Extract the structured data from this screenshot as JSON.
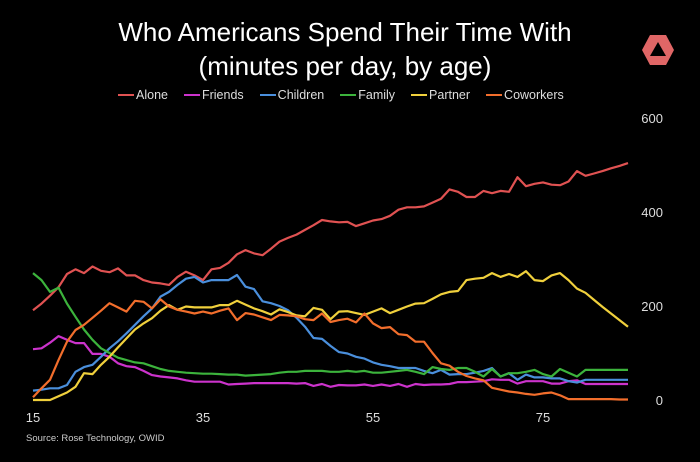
{
  "chart_data": {
    "type": "line",
    "title": "Who Americans Spend Their Time With",
    "subtitle": "(minutes per day, by age)",
    "xlabel": "",
    "ylabel": "",
    "xlim": [
      15,
      85
    ],
    "ylim": [
      0,
      600
    ],
    "x_ticks": [
      15,
      35,
      55,
      75
    ],
    "y_ticks": [
      0,
      200,
      400,
      600
    ],
    "y_axis_side": "right",
    "grid": false,
    "legend_position": "top",
    "x": [
      15,
      16,
      17,
      18,
      19,
      20,
      21,
      22,
      23,
      24,
      25,
      26,
      27,
      28,
      29,
      30,
      31,
      32,
      33,
      34,
      35,
      36,
      37,
      38,
      39,
      40,
      41,
      42,
      43,
      44,
      45,
      46,
      47,
      48,
      49,
      50,
      51,
      52,
      53,
      54,
      55,
      56,
      57,
      58,
      59,
      60,
      61,
      62,
      63,
      64,
      65,
      66,
      67,
      68,
      69,
      70,
      71,
      72,
      73,
      74,
      75,
      76,
      77,
      78,
      79,
      80,
      81,
      82,
      83,
      84,
      85
    ],
    "series": [
      {
        "name": "Alone",
        "color": "#e05252",
        "values": [
          191,
          205,
          222,
          240,
          268,
          278,
          270,
          284,
          275,
          272,
          280,
          265,
          265,
          255,
          250,
          248,
          245,
          262,
          273,
          265,
          255,
          278,
          281,
          292,
          310,
          319,
          312,
          308,
          322,
          337,
          345,
          352,
          362,
          372,
          383,
          380,
          378,
          379,
          370,
          376,
          382,
          385,
          392,
          405,
          410,
          410,
          412,
          420,
          428,
          448,
          443,
          432,
          432,
          445,
          440,
          445,
          443,
          474,
          455,
          460,
          463,
          458,
          457,
          465,
          487,
          477,
          482,
          487,
          493,
          498,
          504
        ]
      },
      {
        "name": "Friends",
        "color": "#cc33cc",
        "values": [
          108,
          110,
          122,
          136,
          128,
          121,
          121,
          98,
          98,
          92,
          78,
          72,
          70,
          62,
          53,
          50,
          48,
          46,
          42,
          39,
          39,
          39,
          39,
          33,
          34,
          35,
          36,
          36,
          36,
          36,
          36,
          35,
          36,
          30,
          34,
          28,
          32,
          31,
          31,
          33,
          30,
          33,
          30,
          34,
          28,
          34,
          32,
          33,
          33,
          34,
          38,
          38,
          39,
          40,
          44,
          43,
          43,
          35,
          40,
          40,
          40,
          35,
          35,
          40,
          42,
          34,
          34,
          34,
          34,
          34,
          34
        ]
      },
      {
        "name": "Children",
        "color": "#4a8fdc",
        "values": [
          20,
          22,
          25,
          25,
          32,
          60,
          70,
          75,
          92,
          110,
          125,
          142,
          160,
          178,
          195,
          220,
          230,
          245,
          258,
          262,
          250,
          255,
          255,
          255,
          266,
          241,
          236,
          210,
          206,
          200,
          191,
          175,
          156,
          132,
          130,
          115,
          102,
          99,
          92,
          88,
          80,
          75,
          72,
          68,
          68,
          68,
          62,
          57,
          64,
          54,
          55,
          55,
          58,
          62,
          68,
          50,
          57,
          43,
          54,
          48,
          48,
          46,
          46,
          40,
          37,
          43,
          43,
          43,
          43,
          43,
          43
        ]
      },
      {
        "name": "Family",
        "color": "#3cb33c",
        "values": [
          270,
          255,
          230,
          239,
          205,
          177,
          150,
          128,
          110,
          100,
          90,
          85,
          80,
          78,
          72,
          66,
          62,
          60,
          58,
          57,
          56,
          56,
          55,
          54,
          54,
          52,
          53,
          54,
          55,
          58,
          60,
          60,
          62,
          62,
          62,
          60,
          60,
          62,
          60,
          62,
          58,
          58,
          60,
          62,
          64,
          60,
          55,
          70,
          66,
          64,
          68,
          68,
          60,
          50,
          66,
          50,
          57,
          57,
          60,
          64,
          55,
          50,
          66,
          58,
          50,
          64,
          64,
          64,
          64,
          64,
          64
        ]
      },
      {
        "name": "Partner",
        "color": "#f0d03c",
        "values": [
          0,
          0,
          0,
          8,
          16,
          28,
          57,
          55,
          75,
          92,
          112,
          131,
          150,
          163,
          174,
          190,
          202,
          192,
          199,
          197,
          197,
          197,
          202,
          202,
          211,
          203,
          195,
          189,
          182,
          193,
          187,
          180,
          178,
          196,
          192,
          172,
          188,
          189,
          185,
          181,
          188,
          195,
          185,
          192,
          199,
          205,
          206,
          215,
          225,
          230,
          232,
          255,
          258,
          260,
          270,
          262,
          268,
          262,
          274,
          255,
          253,
          265,
          270,
          255,
          237,
          228,
          213,
          198,
          184,
          170,
          156
        ]
      },
      {
        "name": "Coworkers",
        "color": "#f26e2c",
        "values": [
          6,
          25,
          43,
          85,
          124,
          149,
          160,
          175,
          190,
          206,
          197,
          188,
          211,
          209,
          195,
          214,
          199,
          192,
          188,
          184,
          188,
          184,
          190,
          195,
          170,
          185,
          182,
          176,
          170,
          181,
          180,
          178,
          172,
          170,
          184,
          166,
          170,
          173,
          165,
          184,
          163,
          153,
          155,
          140,
          138,
          124,
          124,
          100,
          78,
          73,
          60,
          51,
          46,
          42,
          26,
          22,
          18,
          16,
          13,
          11,
          14,
          16,
          10,
          2,
          2,
          2,
          2,
          2,
          2,
          1,
          1
        ]
      }
    ]
  },
  "source": "Source: Rose Technology, OWID",
  "logo": {
    "name": "hexagon-logo",
    "color": "#e06666"
  }
}
